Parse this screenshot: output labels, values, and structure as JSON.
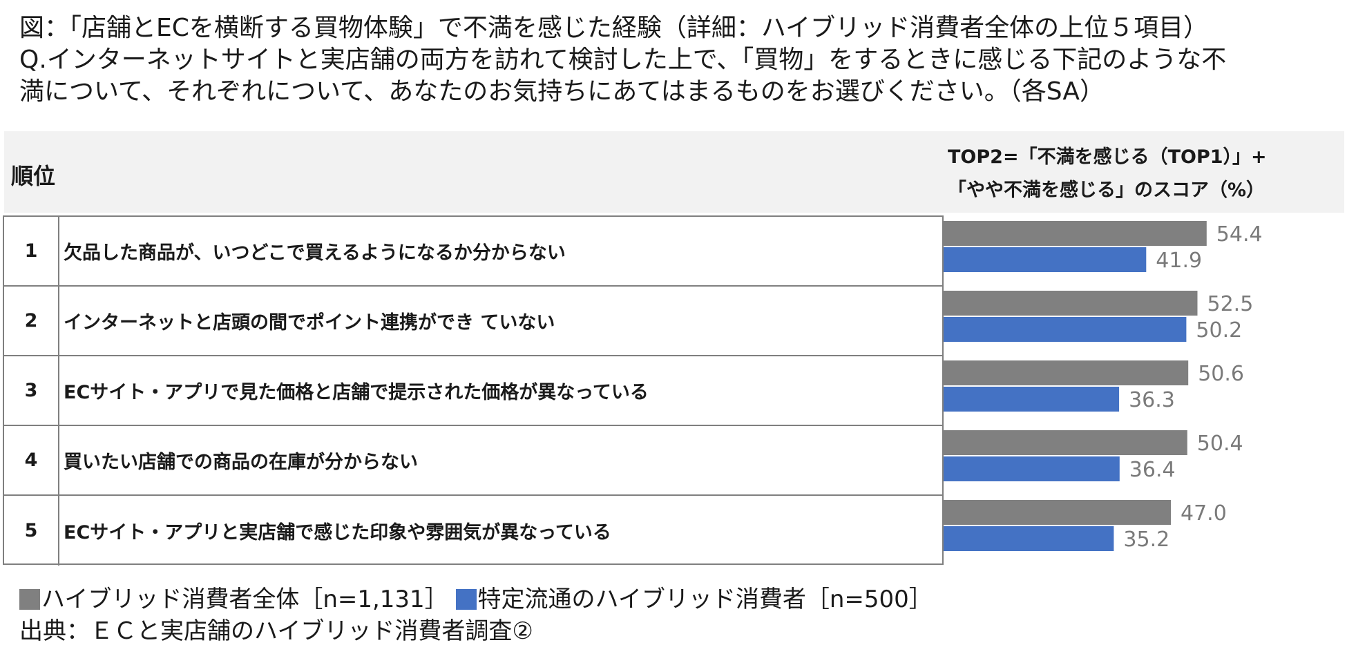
{
  "title": {
    "line1": "図：「店舗とECを横断する買物体験」で不満を感じた経験（詳細：ハイブリッド消費者全体の上位５項目）",
    "line2": "Q.インターネットサイトと実店舗の両方を訪れて検討した上で、「買物」をするときに感じる下記のような不",
    "line3": "満について、それぞれについて、あなたのお気持ちにあてはまるものをお選びください。（各SA）"
  },
  "header": {
    "rank_label": "順位",
    "score_label_line1": "TOP2=「不満を感じる（TOP1）」+",
    "score_label_line2": "「やや不満を感じる」のスコア（%）"
  },
  "rows": [
    {
      "rank": "1",
      "label": "欠品した商品が、いつどこで買えるようになるか分からない"
    },
    {
      "rank": "2",
      "label": "インターネットと店頭の間でポイント連携ができ ていない"
    },
    {
      "rank": "3",
      "label": "ECサイト・アプリで見た価格と店舗で提示された価格が異なっている"
    },
    {
      "rank": "4",
      "label": "買いたい店舗での商品の在庫が分からない"
    },
    {
      "rank": "5",
      "label": "ECサイト・アプリと実店舗で感じた印象や雰囲気が異なっている"
    }
  ],
  "chart_data": {
    "type": "bar",
    "orientation": "horizontal",
    "categories": [
      "1",
      "2",
      "3",
      "4",
      "5"
    ],
    "series": [
      {
        "name": "ハイブリッド消費者全体［n=1,131］",
        "color": "#808080",
        "values": [
          54.4,
          52.5,
          50.6,
          50.4,
          47.0
        ]
      },
      {
        "name": "特定流通のハイブリッド消費者［n=500］",
        "color": "#4472c4",
        "values": [
          41.9,
          50.2,
          36.3,
          36.4,
          35.2
        ]
      }
    ],
    "value_labels": [
      [
        "54.4",
        "52.5",
        "50.6",
        "50.4",
        "47.0"
      ],
      [
        "41.9",
        "50.2",
        "36.3",
        "36.4",
        "35.2"
      ]
    ],
    "xlim": [
      0,
      100
    ],
    "grid": false,
    "legend_position": "bottom-left"
  },
  "legend": {
    "series1_label": "ハイブリッド消費者全体［n=1,131］",
    "series2_label": "特定流通のハイブリッド消費者［n=500］",
    "series1_color": "#808080",
    "series2_color": "#4472c4"
  },
  "source": "出典：ＥＣと実店舗のハイブリッド消費者調査②"
}
